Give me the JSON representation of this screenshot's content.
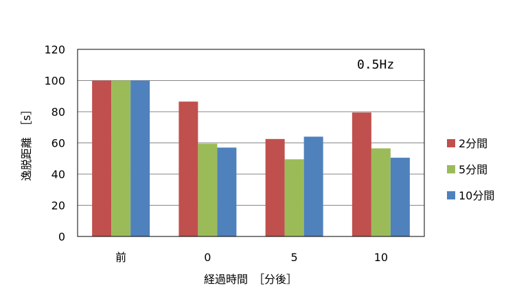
{
  "chart_data": {
    "type": "bar",
    "categories": [
      "前",
      "0",
      "5",
      "10"
    ],
    "series": [
      {
        "name": "2分間",
        "values": [
          100,
          86.5,
          62.5,
          79.5
        ],
        "color": "#c0504d"
      },
      {
        "name": "5分間",
        "values": [
          100,
          59.5,
          49.5,
          56.5
        ],
        "color": "#9bbb59"
      },
      {
        "name": "10分間",
        "values": [
          100,
          57,
          64,
          50.5
        ],
        "color": "#4f81bd"
      }
    ],
    "xlabel": "経過時間　［分後］",
    "ylabel": "逸脱距離　［s］",
    "ylim": [
      0,
      120
    ],
    "yticks": [
      0,
      20,
      40,
      60,
      80,
      100,
      120
    ],
    "annotation": "0.5Hz",
    "grid": true,
    "legend_position": "right"
  }
}
